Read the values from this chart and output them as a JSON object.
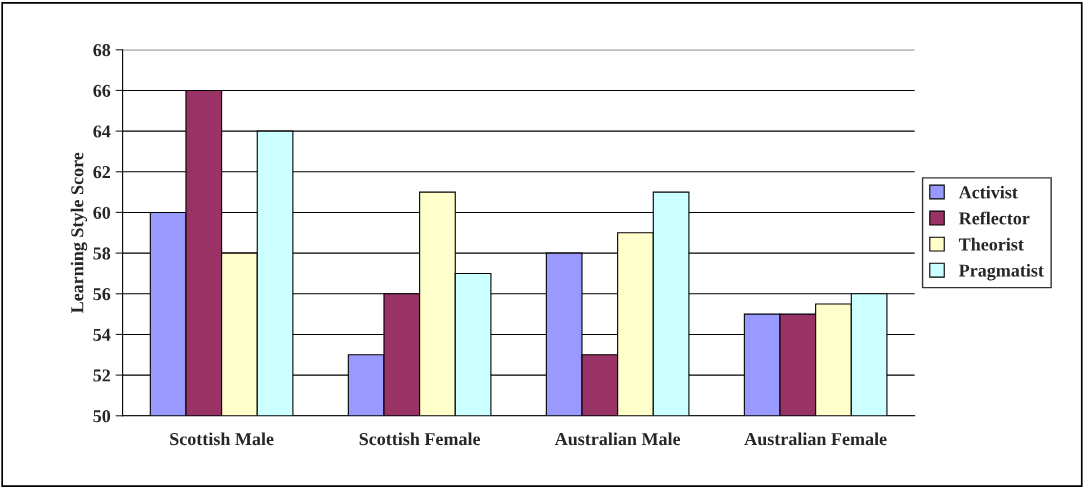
{
  "chart_data": {
    "type": "bar",
    "ylabel": "Learning Style Score",
    "categories": [
      "Scottish Male",
      "Scottish Female",
      "Australian Male",
      "Australian Female"
    ],
    "series": [
      {
        "name": "Activist",
        "color": "#9999ff",
        "values": [
          60,
          53,
          58,
          55
        ]
      },
      {
        "name": "Reflector",
        "color": "#993366",
        "values": [
          66,
          56,
          53,
          55
        ]
      },
      {
        "name": "Theorist",
        "color": "#ffffcc",
        "values": [
          58,
          61,
          59,
          55.5
        ]
      },
      {
        "name": "Pragmatist",
        "color": "#ccffff",
        "values": [
          64,
          57,
          61,
          56
        ]
      }
    ],
    "ylim": [
      50,
      68
    ],
    "yticks": [
      50,
      52,
      54,
      56,
      58,
      60,
      62,
      64,
      66,
      68
    ],
    "grid": "y",
    "legend": "right"
  }
}
